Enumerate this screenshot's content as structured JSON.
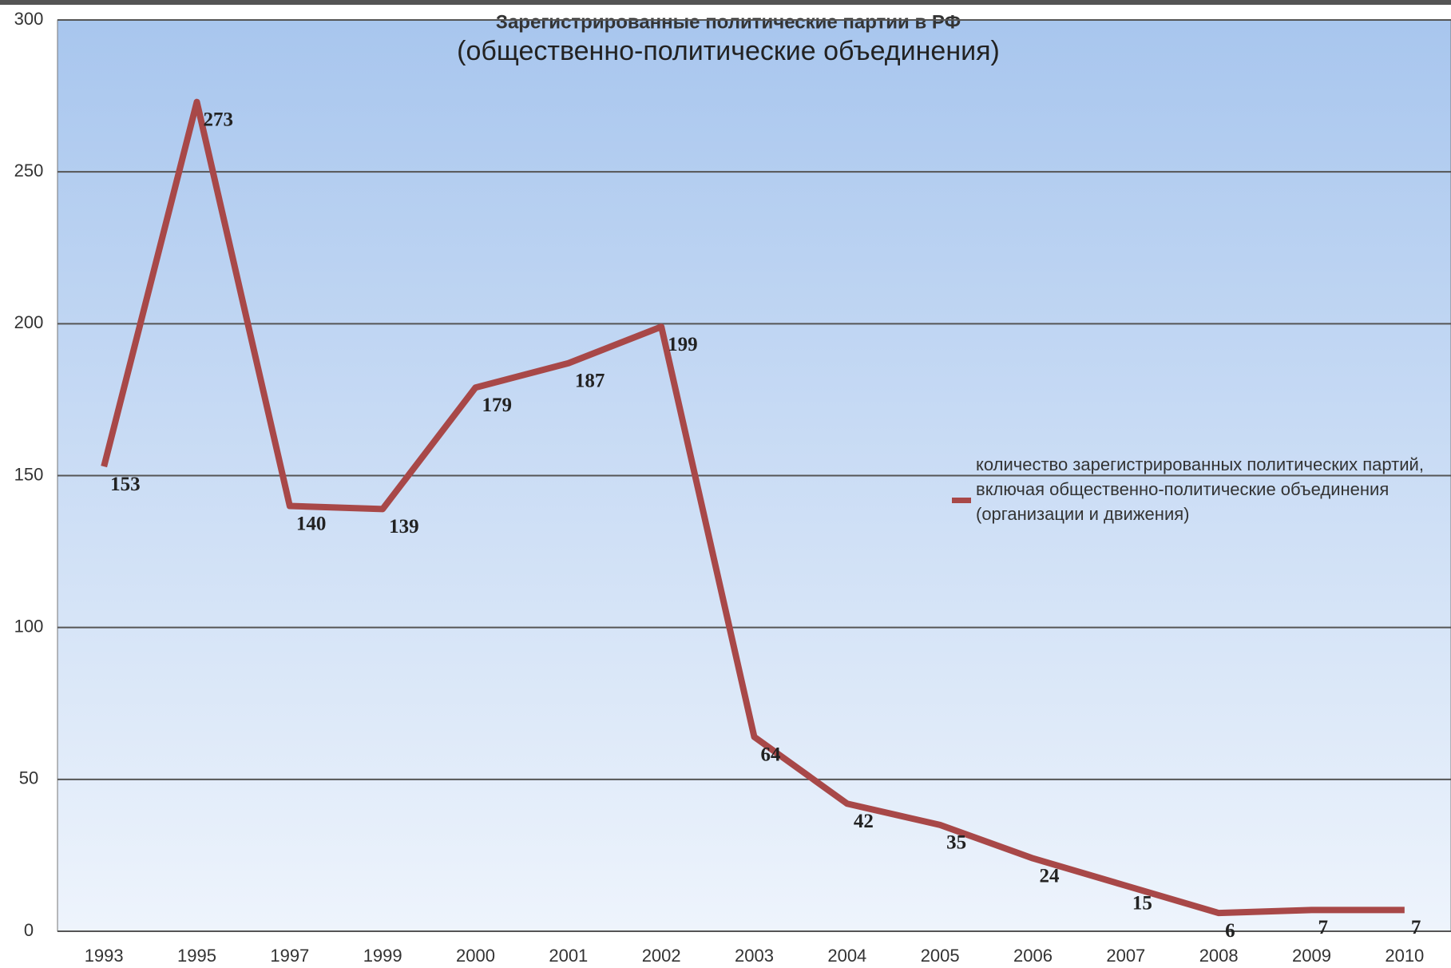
{
  "chart_data": {
    "type": "line",
    "title": "Зарегистрированные политические партии в РФ",
    "subtitle": "(общественно-политические объединения)",
    "categories": [
      "1993",
      "1995",
      "1997",
      "1999",
      "2000",
      "2001",
      "2002",
      "2003",
      "2004",
      "2005",
      "2006",
      "2007",
      "2008",
      "2009",
      "2010"
    ],
    "series": [
      {
        "name": "количество зарегистрированных политических партий, включая общественно-политические объединения (организации и движения)",
        "color": "#a84848",
        "values": [
          153,
          273,
          140,
          139,
          179,
          187,
          199,
          64,
          42,
          35,
          24,
          15,
          6,
          7,
          7
        ]
      }
    ],
    "ylim": [
      0,
      300
    ],
    "yticks": [
      0,
      50,
      100,
      150,
      200,
      250,
      300
    ],
    "grid": true,
    "legend": "right"
  }
}
